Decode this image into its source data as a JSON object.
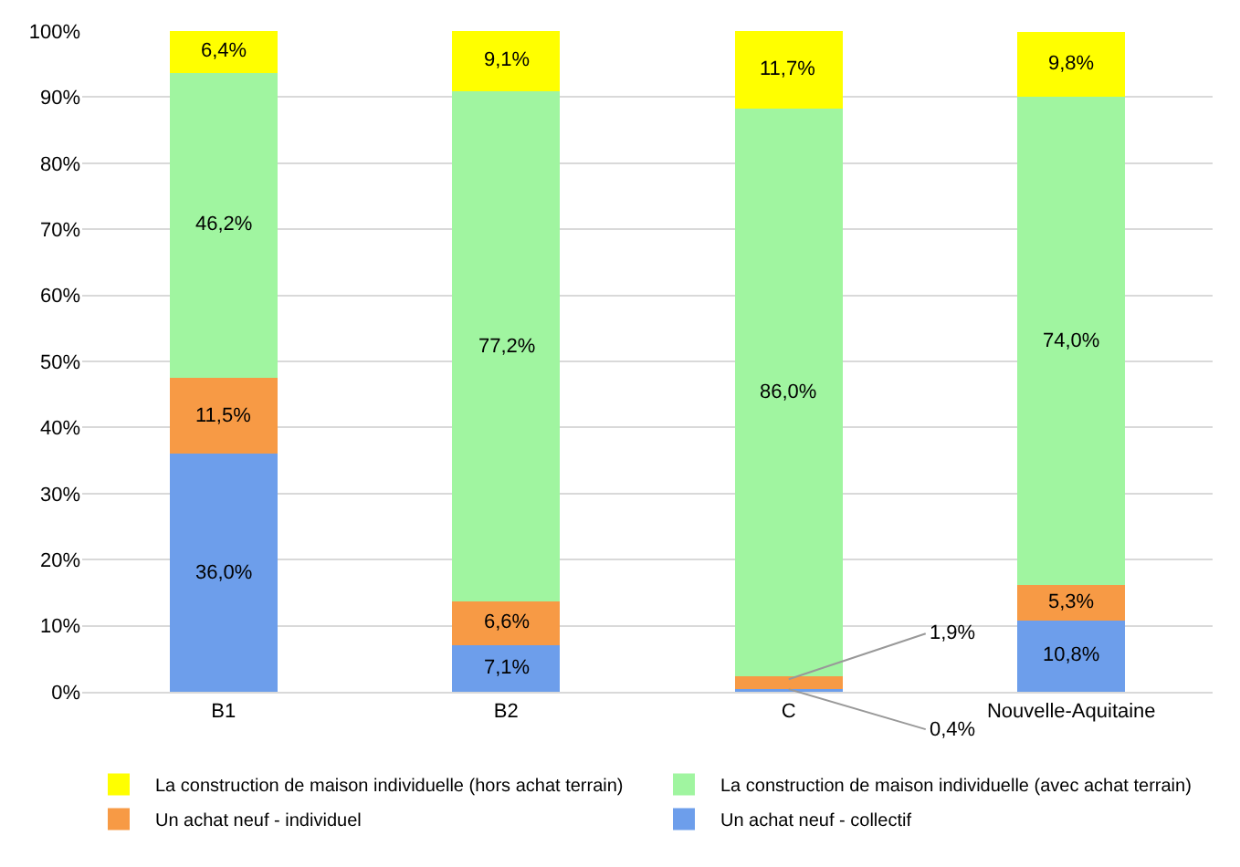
{
  "chart_data": {
    "type": "bar",
    "stacked": true,
    "categories": [
      "B1",
      "B2",
      "C",
      "Nouvelle-Aquitaine"
    ],
    "series": [
      {
        "name": "Un achat neuf - collectif",
        "color": "#6d9eeb",
        "values": [
          36.0,
          7.1,
          0.4,
          10.8
        ],
        "value_labels": [
          "36,0%",
          "7,1%",
          null,
          "10,8%"
        ]
      },
      {
        "name": "Un achat neuf - individuel",
        "color": "#f79a45",
        "values": [
          11.5,
          6.6,
          1.9,
          5.3
        ],
        "value_labels": [
          "11,5%",
          "6,6%",
          null,
          "5,3%"
        ]
      },
      {
        "name": "La construction de maison individuelle (avec achat terrain)",
        "color": "#a0f5a0",
        "values": [
          46.2,
          77.2,
          86.0,
          74.0
        ],
        "value_labels": [
          "46,2%",
          "77,2%",
          "86,0%",
          "74,0%"
        ]
      },
      {
        "name": "La construction de maison individuelle (hors achat terrain)",
        "color": "#ffff00",
        "values": [
          6.4,
          9.1,
          11.7,
          9.8
        ],
        "value_labels": [
          "6,4%",
          "9,1%",
          "11,7%",
          "9,8%"
        ]
      }
    ],
    "annotations": [
      {
        "text": "1,9%",
        "x": "C",
        "y": 1.9
      },
      {
        "text": "0,4%",
        "x": "C",
        "y": 0.4
      }
    ],
    "ylim": [
      0,
      100
    ],
    "yticks": [
      {
        "value": 0,
        "label": "0%"
      },
      {
        "value": 10,
        "label": "10%"
      },
      {
        "value": 20,
        "label": "20%"
      },
      {
        "value": 30,
        "label": "30%"
      },
      {
        "value": 40,
        "label": "40%"
      },
      {
        "value": 50,
        "label": "50%"
      },
      {
        "value": 60,
        "label": "60%"
      },
      {
        "value": 70,
        "label": "70%"
      },
      {
        "value": 80,
        "label": "80%"
      },
      {
        "value": 90,
        "label": "90%"
      },
      {
        "value": 100,
        "label": "100%"
      }
    ],
    "grid": "y",
    "legend": "bottom"
  }
}
